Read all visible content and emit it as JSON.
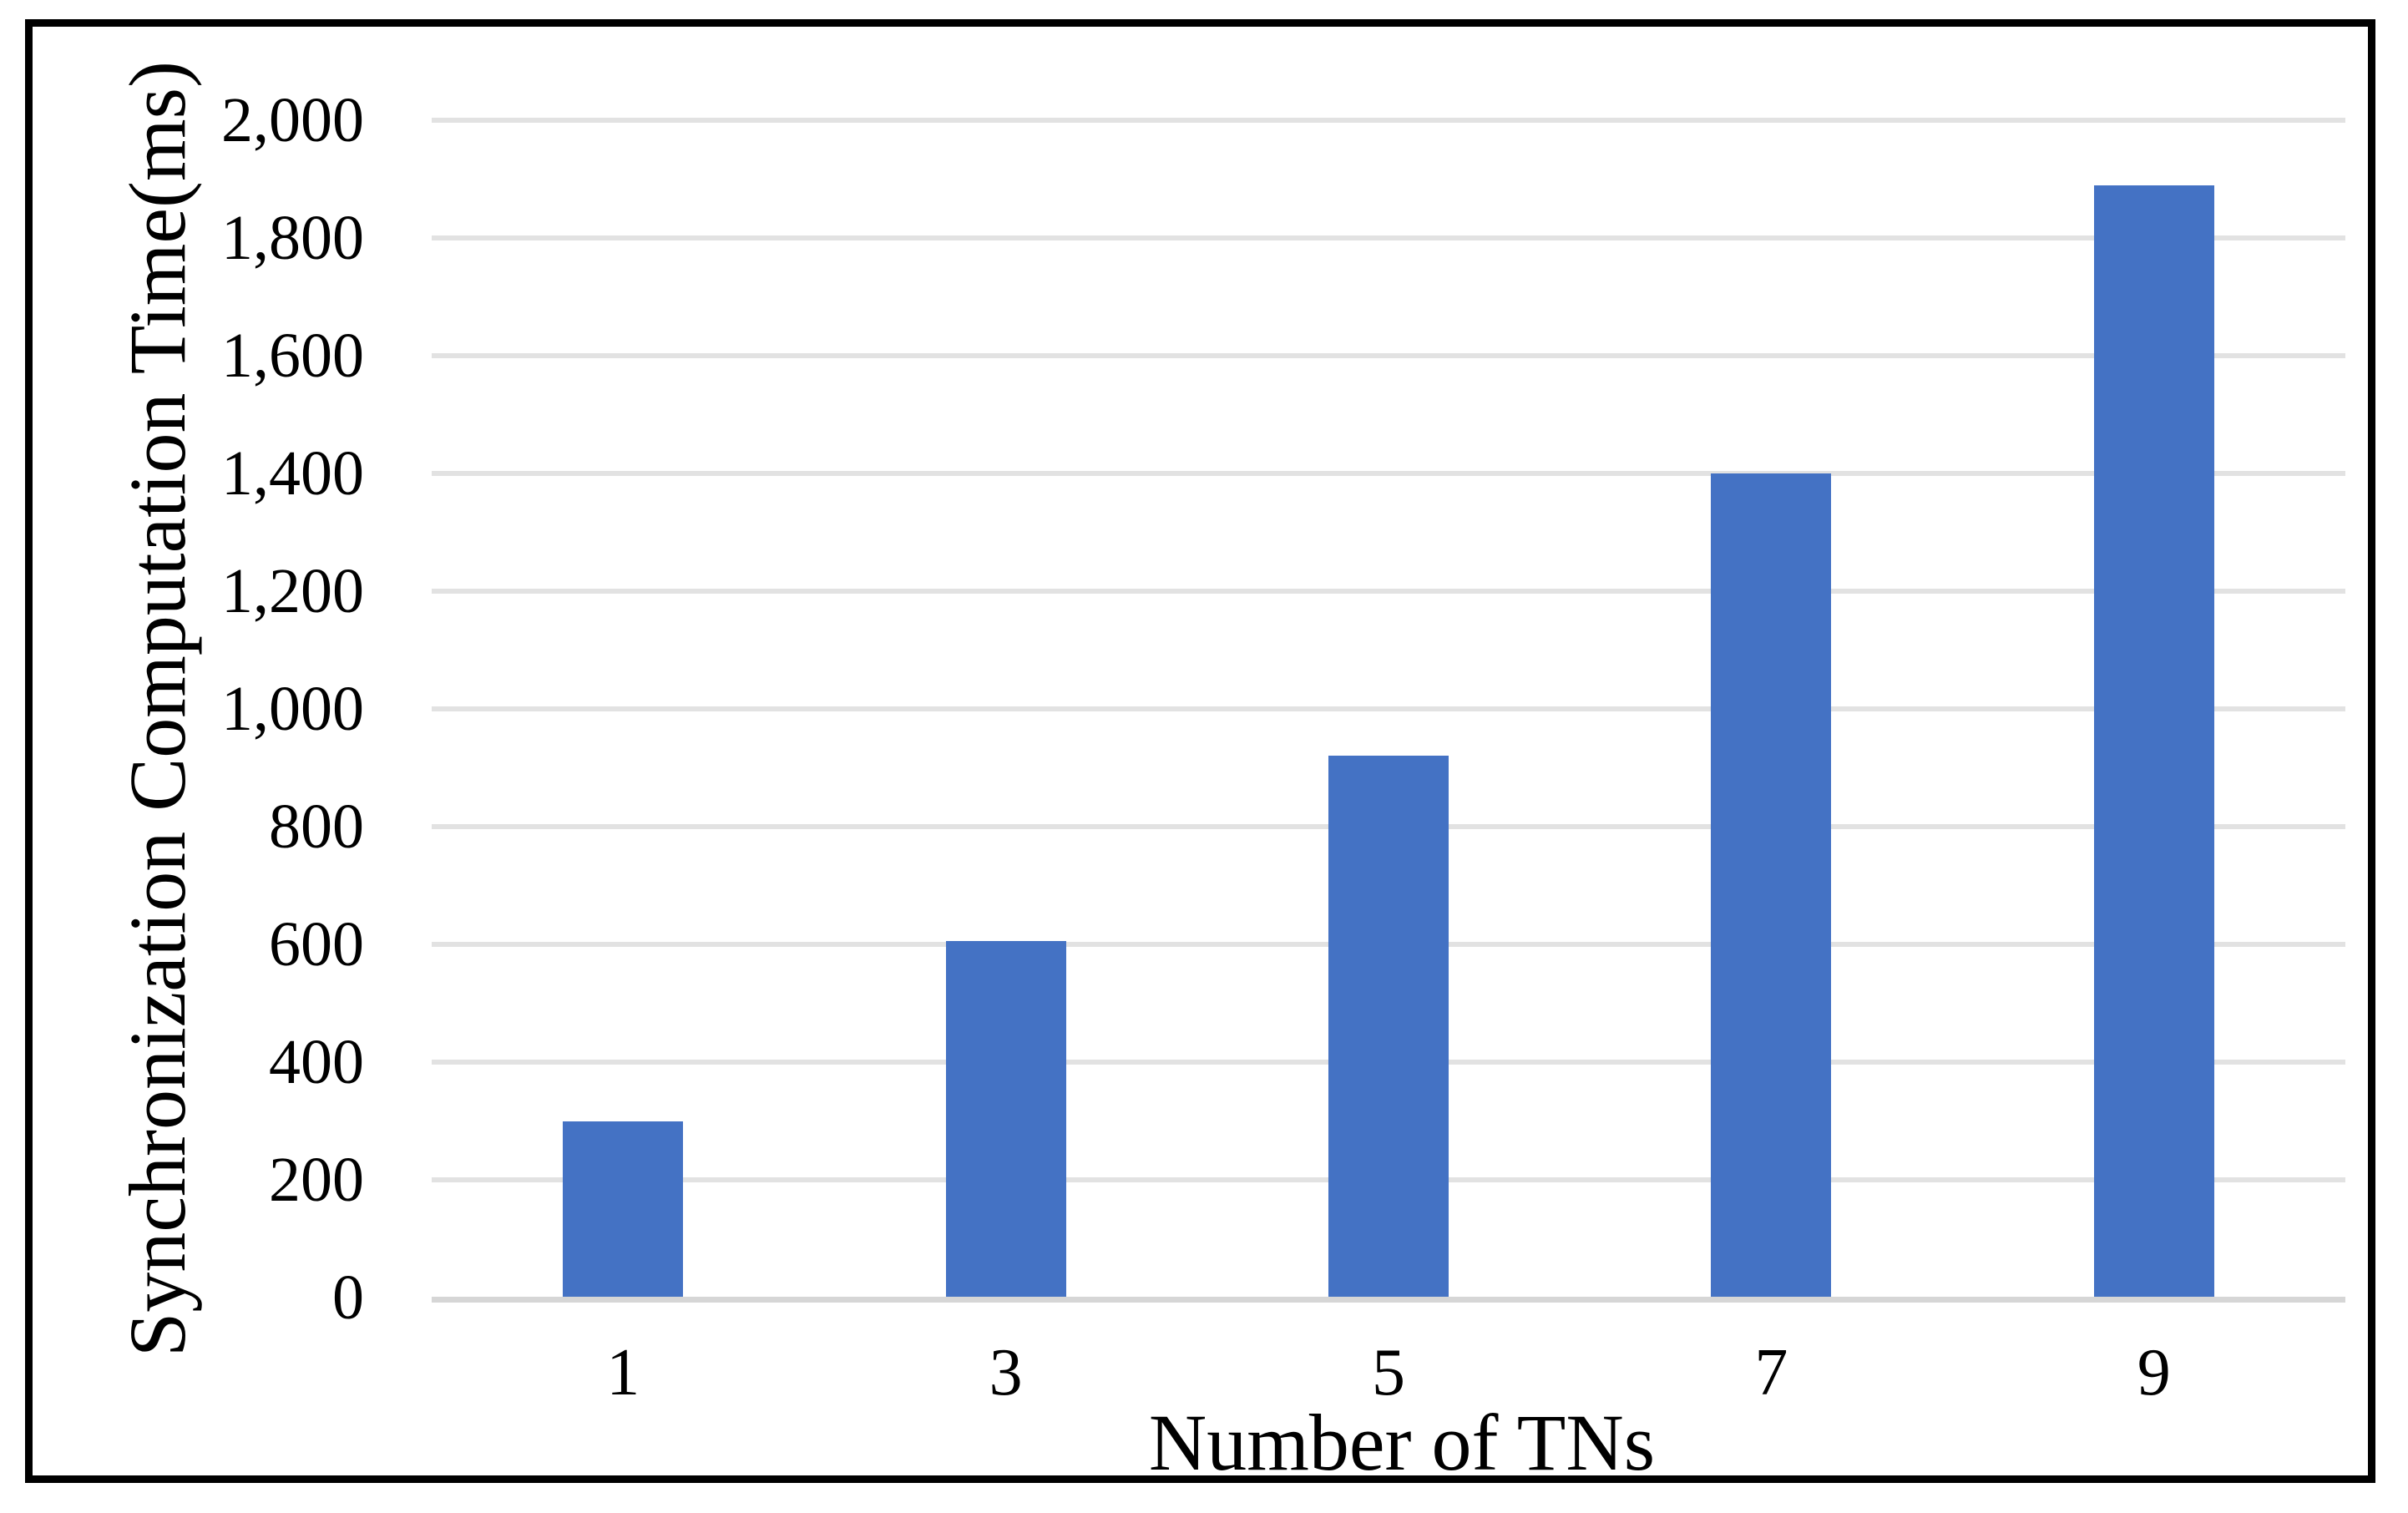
{
  "chart_data": {
    "type": "bar",
    "title": "",
    "xlabel": "Number of TNs",
    "ylabel": "Synchronization Computation Time(ms)",
    "categories": [
      "1",
      "3",
      "5",
      "7",
      "9"
    ],
    "values": [
      300,
      605,
      920,
      1400,
      1890
    ],
    "ylim": [
      0,
      2000
    ],
    "ytick_interval": 200,
    "ytick_labels": [
      "0",
      "200",
      "400",
      "600",
      "800",
      "1,000",
      "1,200",
      "1,400",
      "1,600",
      "1,800",
      "2,000"
    ],
    "bar_color": "#4472C4",
    "gridline_color": "#E2E2E2",
    "axis_line_color": "#D6D6D6",
    "frame_color": "#000000",
    "text_color": "#000000",
    "grid": true,
    "legend_position": "none"
  }
}
